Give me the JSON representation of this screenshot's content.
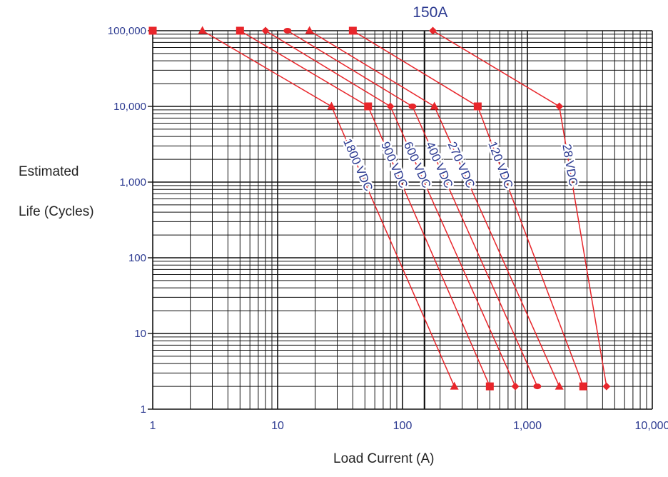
{
  "chart_data": {
    "type": "line",
    "title": "150A",
    "xlabel": "Load Current (A)",
    "ylabel": [
      "Estimated",
      "Life (Cycles)"
    ],
    "x_scale": "log",
    "y_scale": "log",
    "xlim": [
      1,
      10000
    ],
    "ylim": [
      1,
      100000
    ],
    "x_ticks": [
      "1",
      "10",
      "100",
      "1,000",
      "10,000"
    ],
    "y_ticks": [
      "1",
      "10",
      "100",
      "1,000",
      "10,000",
      "100,000"
    ],
    "grid": true,
    "series": [
      {
        "name": "1800 VDC",
        "marker": "triangle",
        "points": [
          [
            2.5,
            100000
          ],
          [
            27,
            10000
          ],
          [
            260,
            2
          ]
        ]
      },
      {
        "name": "900 VDC",
        "marker": "square",
        "points": [
          [
            5,
            100000
          ],
          [
            53,
            10000
          ],
          [
            500,
            2
          ]
        ]
      },
      {
        "name": "600 VDC",
        "marker": "diamond",
        "points": [
          [
            8,
            100000
          ],
          [
            80,
            10000
          ],
          [
            800,
            2
          ]
        ]
      },
      {
        "name": "400 VDC",
        "marker": "circle",
        "points": [
          [
            12,
            100000
          ],
          [
            120,
            10000
          ],
          [
            1200,
            2
          ]
        ]
      },
      {
        "name": "270 VDC",
        "marker": "triangle",
        "points": [
          [
            18,
            100000
          ],
          [
            180,
            10000
          ],
          [
            1800,
            2
          ]
        ]
      },
      {
        "name": "120 VDC",
        "marker": "square",
        "points": [
          [
            40,
            100000
          ],
          [
            400,
            10000
          ],
          [
            2800,
            2
          ]
        ]
      },
      {
        "name": "28 VDC",
        "marker": "diamond",
        "points": [
          [
            175,
            100000
          ],
          [
            1800,
            10000
          ],
          [
            4300,
            2
          ]
        ]
      }
    ],
    "extra_points": [
      {
        "marker": "square",
        "point": [
          1,
          100000
        ]
      }
    ],
    "reference_line": {
      "x": 150
    },
    "colors": {
      "series": "#e8262b",
      "text": "#2b3990",
      "grid": "#111111"
    }
  }
}
